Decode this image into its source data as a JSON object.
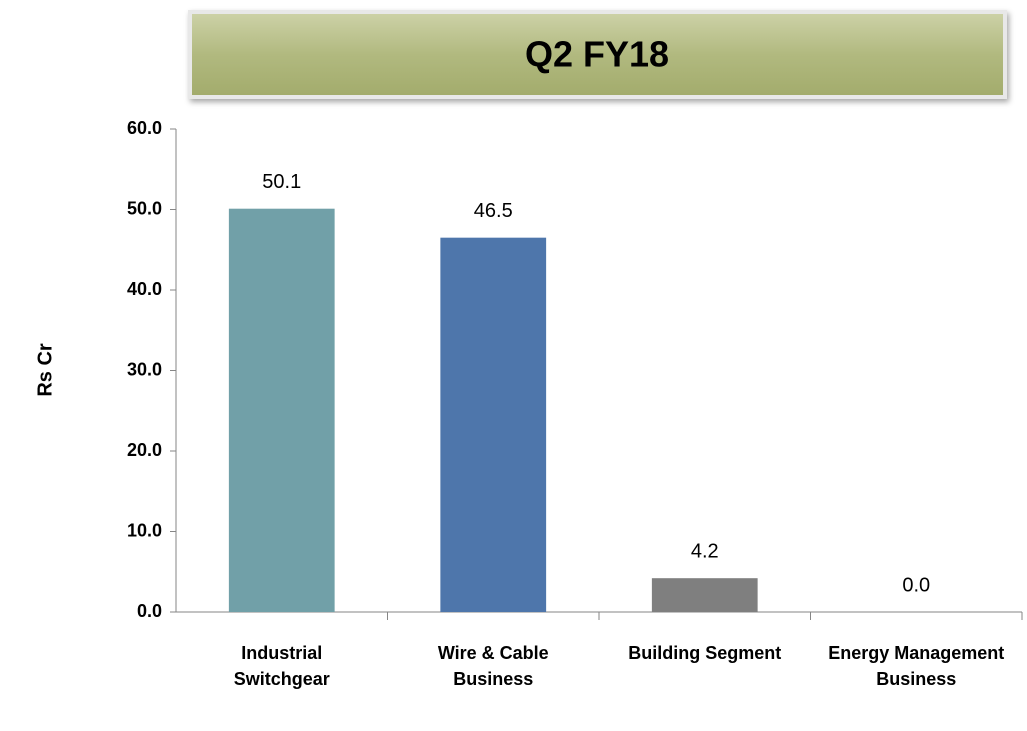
{
  "chart_data": {
    "type": "bar",
    "title": "Q2 FY18",
    "y_label": "Rs Cr",
    "categories": [
      "Industrial Switchgear",
      "Wire & Cable Business",
      "Building Segment",
      "Energy Management Business"
    ],
    "values": [
      50.1,
      46.5,
      4.2,
      0.0
    ],
    "value_labels": [
      "50.1",
      "46.5",
      "4.2",
      "0.0"
    ],
    "colors": [
      "#71a0a8",
      "#4e76ab",
      "#7f7f7f",
      "#a5a5a5"
    ],
    "ylim": [
      0,
      60
    ],
    "yticks": [
      {
        "value": 0,
        "label": "0.0"
      },
      {
        "value": 10,
        "label": "10.0"
      },
      {
        "value": 20,
        "label": "20.0"
      },
      {
        "value": 30,
        "label": "30.0"
      },
      {
        "value": 40,
        "label": "40.0"
      },
      {
        "value": 50,
        "label": "50.0"
      },
      {
        "value": 60,
        "label": "60.0"
      }
    ],
    "grid": false
  }
}
